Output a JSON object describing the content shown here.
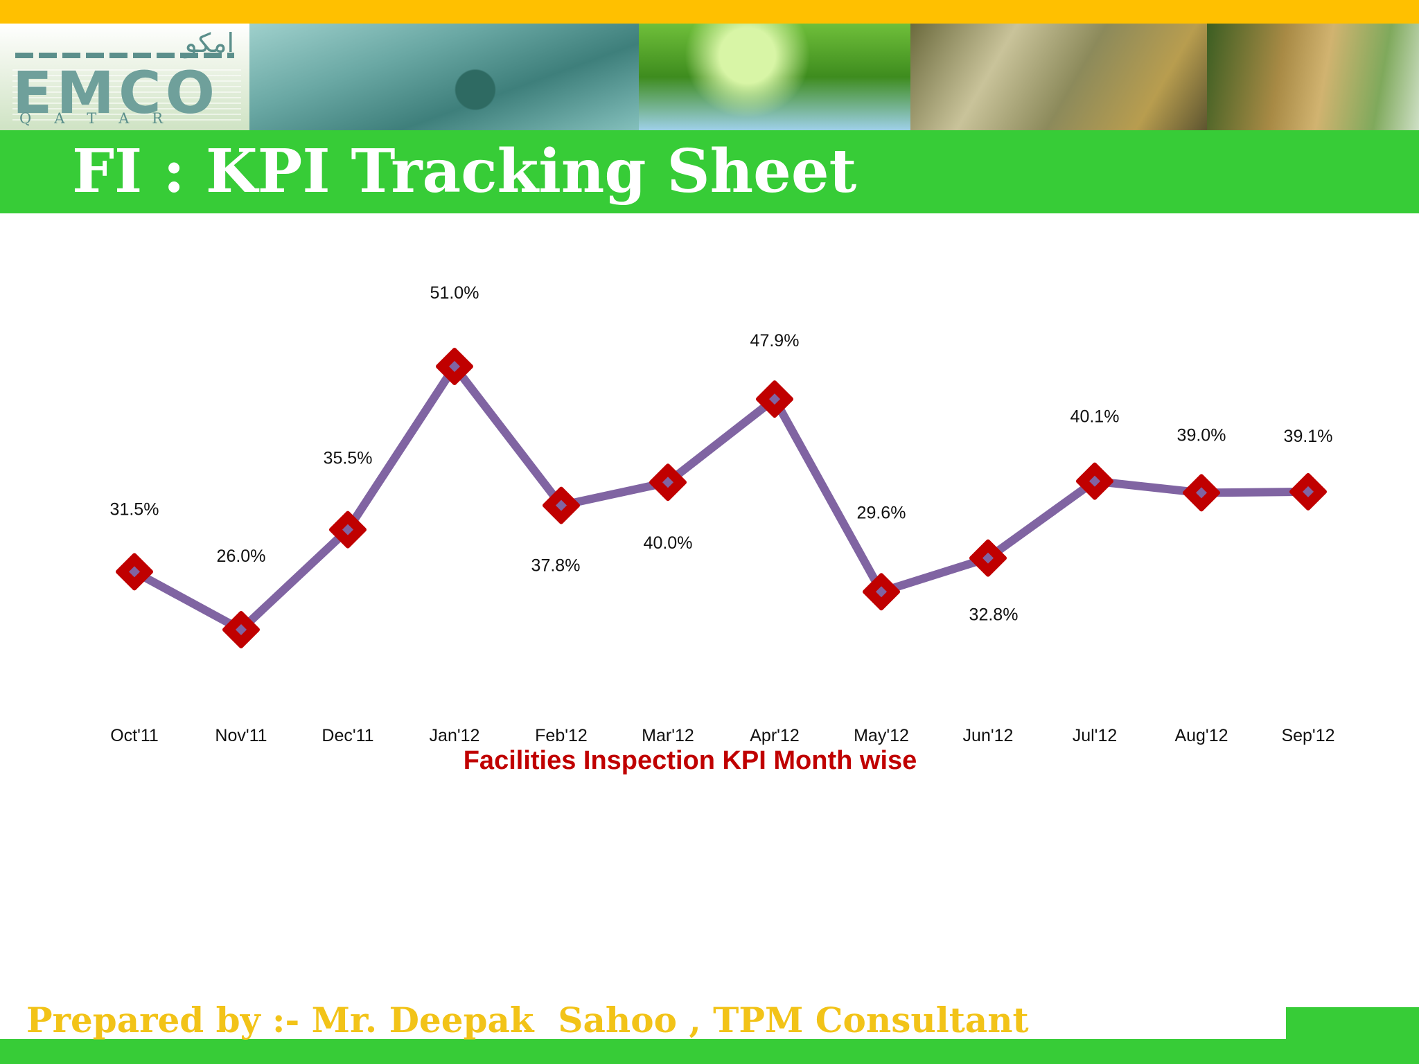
{
  "header": {
    "logo_arabic": "امكو",
    "logo_main": "EMCO",
    "logo_sub": "QATAR",
    "title": "FI : KPI Tracking Sheet"
  },
  "footer": {
    "prepared_by": "Prepared by :- Mr. Deepak  Sahoo , TPM Consultant"
  },
  "colors": {
    "top_stripe": "#ffc000",
    "title_bar": "#37cc37",
    "line": "#8064a2",
    "marker": "#c00000",
    "chart_title": "#c00000",
    "footer_text": "#f2c318"
  },
  "chart_data": {
    "type": "line",
    "title": "Facilities Inspection KPI Month wise",
    "xlabel": "",
    "ylabel": "",
    "categories": [
      "Oct'11",
      "Nov'11",
      "Dec'11",
      "Jan'12",
      "Feb'12",
      "Mar'12",
      "Apr'12",
      "May'12",
      "Jun'12",
      "Jul'12",
      "Aug'12",
      "Sep'12"
    ],
    "series": [
      {
        "values": [
          31.5,
          26.0,
          35.5,
          51.0,
          37.8,
          40.0,
          47.9,
          29.6,
          32.8,
          40.1,
          39.0,
          39.1
        ],
        "labels": [
          "31.5%",
          "26.0%",
          "35.5%",
          "51.0%",
          "37.8%",
          "40.0%",
          "47.9%",
          "29.6%",
          "32.8%",
          "40.1%",
          "39.0%",
          "39.1%"
        ]
      }
    ],
    "ylim": [
      0,
      60
    ],
    "grid": false,
    "legend": "none",
    "marker": "diamond"
  }
}
